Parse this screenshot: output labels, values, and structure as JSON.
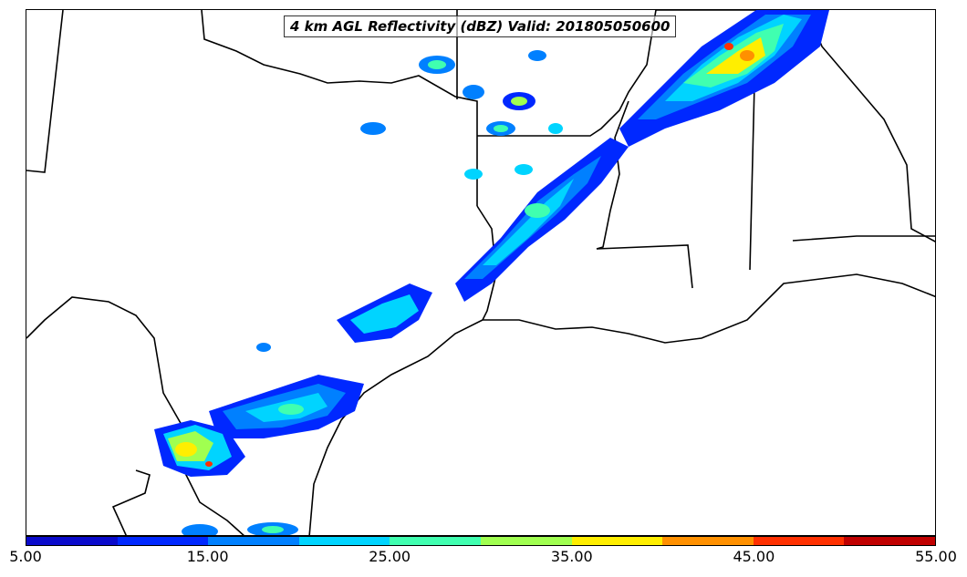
{
  "title": "4 km AGL Reflectivity (dBZ) Valid: 201805050600",
  "colorbar": {
    "bins": [
      {
        "color": "#0a0acb"
      },
      {
        "color": "#0028ff"
      },
      {
        "color": "#0080ff"
      },
      {
        "color": "#00d4ff"
      },
      {
        "color": "#40ffb0"
      },
      {
        "color": "#a0ff50"
      },
      {
        "color": "#ffee00"
      },
      {
        "color": "#ff9000"
      },
      {
        "color": "#ff3000"
      },
      {
        "color": "#c00000"
      }
    ],
    "tick_labels": [
      "5.00",
      "15.00",
      "25.00",
      "35.00",
      "45.00",
      "55.00"
    ]
  }
}
